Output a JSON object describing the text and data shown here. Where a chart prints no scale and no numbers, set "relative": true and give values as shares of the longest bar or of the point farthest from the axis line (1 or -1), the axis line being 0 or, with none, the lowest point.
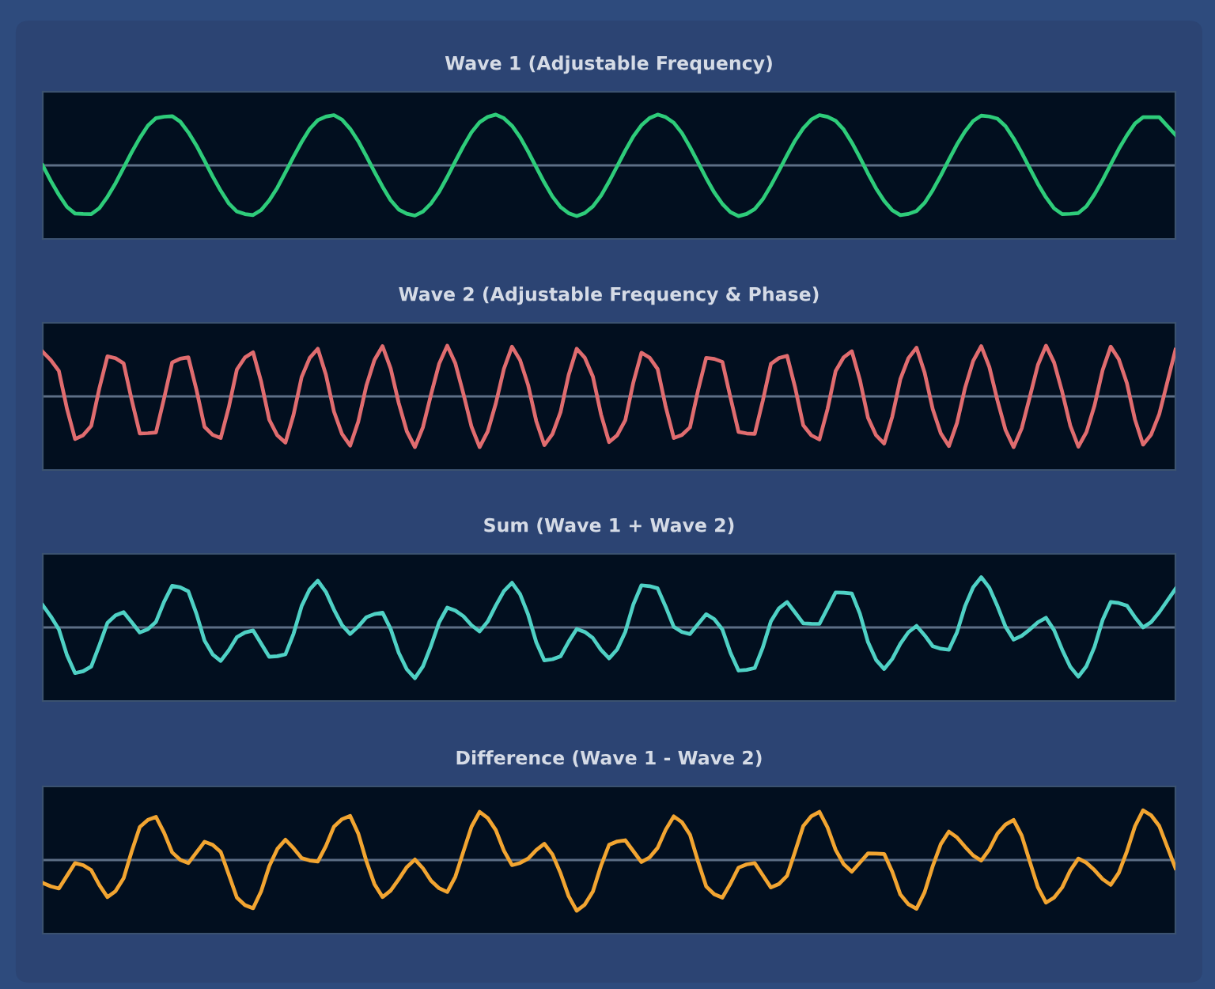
{
  "chart_data": [
    {
      "type": "line",
      "title": "Wave 1 (Adjustable Frequency)",
      "relative": true,
      "ref_lines": [
        {
          "axis": "y",
          "value": 0,
          "color": "#5d6f86"
        }
      ],
      "categories": [
        null,
        null,
        null,
        null,
        null,
        null,
        null,
        null,
        null,
        null,
        null,
        null,
        null,
        null,
        null,
        null,
        null,
        null,
        null,
        null,
        null,
        null,
        null,
        null,
        null,
        null,
        null,
        null,
        null,
        null,
        null,
        null,
        null,
        null,
        null,
        null,
        null,
        null,
        null,
        null,
        null,
        null,
        null,
        null,
        null,
        null,
        null,
        null,
        null,
        null,
        null,
        null,
        null,
        null,
        null,
        null,
        null,
        null,
        null,
        null,
        null,
        null,
        null,
        null,
        null,
        null,
        null,
        null,
        null,
        null,
        null
      ],
      "series": [
        {
          "color": "#2ecc7a",
          "values": [
            0,
            -0.58,
            -0.95,
            -0.96,
            -0.62,
            -0.05,
            0.54,
            0.93,
            0.97,
            0.65,
            0.09,
            -0.5,
            -0.91,
            -0.98,
            -0.69,
            -0.14,
            0.46,
            0.89,
            0.99,
            0.72,
            0.18,
            -0.42,
            -0.87,
            -0.99,
            -0.75,
            -0.23,
            0.38,
            0.85,
            1,
            0.78,
            0.27,
            -0.34,
            -0.82,
            -1,
            -0.81,
            -0.32,
            0.29,
            0.79,
            1,
            0.84,
            0.36,
            -0.25,
            -0.76,
            -1,
            -0.86,
            -0.4,
            0.2,
            0.73,
            0.99,
            0.88,
            0.45,
            -0.16,
            -0.7,
            -0.98,
            -0.9,
            -0.49,
            0.11,
            0.67,
            0.98,
            0.92,
            0.53,
            -0.06,
            -0.63,
            -0.96,
            -0.94,
            -0.57,
            0.02,
            0.59,
            0.95,
            0.95,
            0.6
          ]
        }
      ]
    },
    {
      "type": "line",
      "title": "Wave 2 (Adjustable Frequency & Phase)",
      "relative": true,
      "ref_lines": [
        {
          "axis": "y",
          "value": 0,
          "color": "#5d6f86"
        }
      ],
      "categories": [
        null,
        null,
        null,
        null,
        null,
        null,
        null,
        null,
        null,
        null,
        null,
        null,
        null,
        null,
        null,
        null,
        null,
        null,
        null,
        null,
        null,
        null,
        null,
        null,
        null,
        null,
        null,
        null,
        null,
        null,
        null,
        null,
        null,
        null,
        null,
        null,
        null,
        null,
        null,
        null,
        null,
        null,
        null,
        null,
        null,
        null,
        null,
        null,
        null,
        null,
        null,
        null,
        null,
        null,
        null,
        null,
        null,
        null,
        null,
        null,
        null,
        null,
        null,
        null,
        null,
        null,
        null,
        null,
        null,
        null,
        null
      ],
      "series": [
        {
          "color": "#e06c6f",
          "values": [
            0.88,
            0.5,
            -0.84,
            -0.58,
            0.79,
            0.65,
            -0.73,
            -0.71,
            0.67,
            0.77,
            -0.6,
            -0.82,
            0.53,
            0.87,
            -0.46,
            -0.91,
            0.38,
            0.94,
            -0.3,
            -0.97,
            0.21,
            0.99,
            -0.13,
            -1,
            0.04,
            1,
            0.05,
            -1,
            -0.14,
            0.98,
            0.22,
            -0.96,
            -0.31,
            0.94,
            0.39,
            -0.9,
            -0.47,
            0.86,
            0.54,
            -0.82,
            -0.61,
            0.76,
            0.68,
            -0.7,
            -0.74,
            0.64,
            0.8,
            -0.57,
            -0.85,
            0.5,
            0.89,
            -0.42,
            -0.93,
            0.34,
            0.96,
            -0.25,
            -0.98,
            0.17,
            0.99,
            -0.08,
            -1,
            -0.01,
            1,
            0.09,
            -0.99,
            -0.18,
            0.98,
            0.26,
            -0.95,
            -0.35,
            0.92
          ]
        }
      ]
    },
    {
      "type": "line",
      "title": "Sum (Wave 1 + Wave 2)",
      "relative": true,
      "ref_lines": [
        {
          "axis": "y",
          "value": 0,
          "color": "#5d6f86"
        }
      ],
      "categories": [
        null,
        null,
        null,
        null,
        null,
        null,
        null,
        null,
        null,
        null,
        null,
        null,
        null,
        null,
        null,
        null,
        null,
        null,
        null,
        null,
        null,
        null,
        null,
        null,
        null,
        null,
        null,
        null,
        null,
        null,
        null,
        null,
        null,
        null,
        null,
        null,
        null,
        null,
        null,
        null,
        null,
        null,
        null,
        null,
        null,
        null,
        null,
        null,
        null,
        null,
        null,
        null,
        null,
        null,
        null,
        null,
        null,
        null,
        null,
        null,
        null,
        null,
        null,
        null,
        null,
        null,
        null,
        null,
        null,
        null,
        null
      ],
      "series": [
        {
          "color": "#4fd1c5",
          "values": [
            0.44,
            -0.04,
            -0.9,
            -0.77,
            0.09,
            0.3,
            -0.1,
            0.11,
            0.82,
            0.71,
            -0.26,
            -0.66,
            -0.19,
            -0.06,
            -0.58,
            -0.53,
            0.42,
            0.92,
            0.35,
            -0.13,
            0.2,
            0.29,
            -0.5,
            -1,
            -0.36,
            0.39,
            0.22,
            -0.08,
            0.43,
            0.88,
            0.25,
            -0.65,
            -0.57,
            -0.03,
            -0.21,
            -0.61,
            -0.09,
            0.83,
            0.77,
            0.01,
            -0.13,
            0.26,
            -0.04,
            -0.85,
            -0.8,
            0.12,
            0.5,
            0.08,
            0.07,
            0.69,
            0.67,
            -0.29,
            -0.82,
            -0.32,
            0.03,
            -0.37,
            -0.44,
            0.42,
            0.99,
            0.42,
            -0.24,
            -0.04,
            0.19,
            -0.44,
            -0.97,
            -0.38,
            0.5,
            0.43,
            0,
            0.3,
            0.76
          ]
        }
      ]
    },
    {
      "type": "line",
      "title": "Difference (Wave 1 - Wave 2)",
      "relative": true,
      "ref_lines": [
        {
          "axis": "y",
          "value": 0,
          "color": "#5d6f86"
        }
      ],
      "categories": [
        null,
        null,
        null,
        null,
        null,
        null,
        null,
        null,
        null,
        null,
        null,
        null,
        null,
        null,
        null,
        null,
        null,
        null,
        null,
        null,
        null,
        null,
        null,
        null,
        null,
        null,
        null,
        null,
        null,
        null,
        null,
        null,
        null,
        null,
        null,
        null,
        null,
        null,
        null,
        null,
        null,
        null,
        null,
        null,
        null,
        null,
        null,
        null,
        null,
        null,
        null,
        null,
        null,
        null,
        null,
        null,
        null,
        null,
        null,
        null,
        null,
        null,
        null,
        null,
        null,
        null,
        null,
        null,
        null,
        null,
        null
      ],
      "series": [
        {
          "color": "#f2a531",
          "values": [
            -0.45,
            -0.56,
            -0.06,
            -0.2,
            -0.73,
            -0.36,
            0.65,
            0.85,
            0.15,
            -0.06,
            0.36,
            0.16,
            -0.74,
            -0.95,
            -0.12,
            0.4,
            0.04,
            -0.03,
            0.66,
            0.87,
            -0.02,
            -0.73,
            -0.38,
            0.01,
            -0.41,
            -0.63,
            0.17,
            0.95,
            0.59,
            -0.1,
            0.03,
            0.32,
            -0.26,
            -1,
            -0.62,
            0.3,
            0.39,
            -0.04,
            0.24,
            0.86,
            0.5,
            -0.52,
            -0.74,
            -0.15,
            -0.06,
            -0.54,
            -0.31,
            0.67,
            0.95,
            0.2,
            -0.23,
            0.13,
            0.12,
            -0.68,
            -0.96,
            -0.12,
            0.56,
            0.26,
            -0.01,
            0.52,
            0.79,
            -0.03,
            -0.84,
            -0.54,
            0.03,
            -0.2,
            -0.49,
            0.17,
            0.98,
            0.67,
            -0.16
          ]
        }
      ]
    }
  ]
}
